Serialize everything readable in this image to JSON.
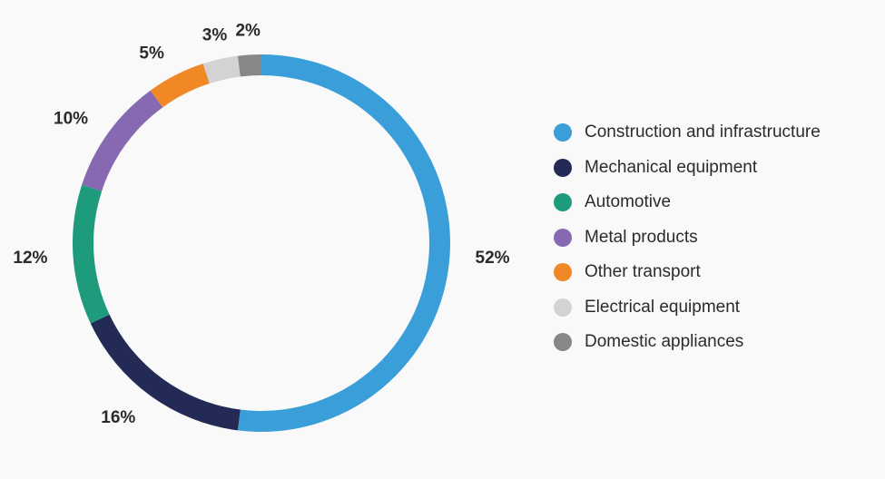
{
  "chart_data": {
    "type": "pie",
    "style": "donut",
    "categories": [
      "Construction and infrastructure",
      "Mechanical equipment",
      "Automotive",
      "Metal products",
      "Other transport",
      "Electrical equipment",
      "Domestic appliances"
    ],
    "values": [
      52,
      16,
      12,
      10,
      5,
      3,
      2
    ],
    "value_labels": [
      "52%",
      "16%",
      "12%",
      "10%",
      "5%",
      "3%",
      "2%"
    ],
    "colors": [
      "#3a9fd9",
      "#232a55",
      "#1e9a7c",
      "#8669b0",
      "#f08826",
      "#d3d3d3",
      "#878787"
    ],
    "legend_position": "right",
    "title": ""
  }
}
